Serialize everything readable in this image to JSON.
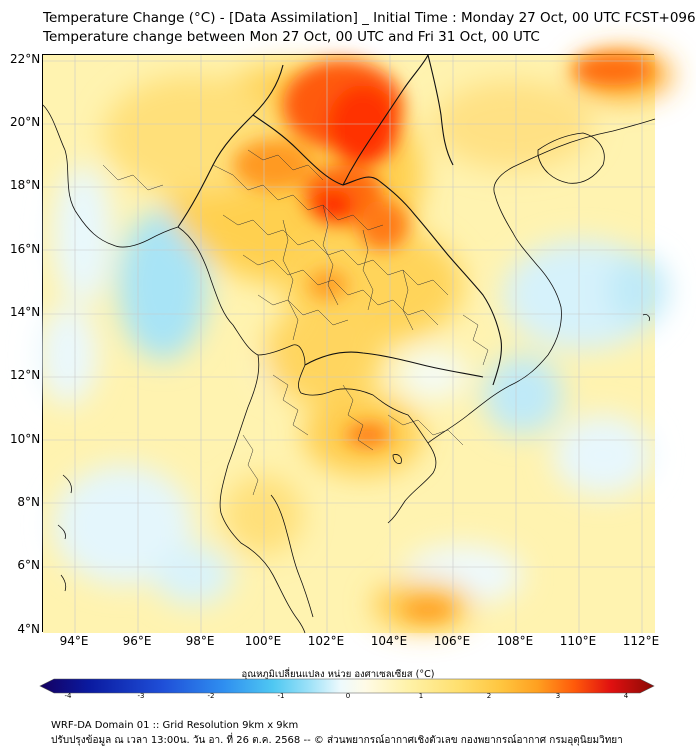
{
  "header": {
    "title_line1": "Temperature Change (°C) - [Data Assimilation] _ Initial Time : Monday 27 Oct, 00 UTC FCST+096",
    "title_line2": "Temperature change between Mon 27 Oct, 00 UTC and Fri 31 Oct, 00 UTC"
  },
  "map": {
    "lat_labels": [
      "22°N",
      "20°N",
      "18°N",
      "16°N",
      "14°N",
      "12°N",
      "10°N",
      "8°N",
      "6°N",
      "4°N"
    ],
    "lon_labels": [
      "94°E",
      "96°E",
      "98°E",
      "100°E",
      "102°E",
      "104°E",
      "106°E",
      "108°E",
      "110°E",
      "112°E"
    ],
    "extent": {
      "lon_min": 93.0,
      "lon_max": 112.5,
      "lat_min": 4.0,
      "lat_max": 22.2
    }
  },
  "colorbar": {
    "title": "อุณหภูมิเปลี่ยนแปลง หน่วย องศาเซลเซียส (°C)",
    "ticks": [
      "-4",
      "-3",
      "-2",
      "-1",
      "0",
      "1",
      "2",
      "3",
      "4"
    ],
    "min": -4,
    "max": 4,
    "colors": [
      "#140060",
      "#0a1aa0",
      "#1f4fd8",
      "#2f8ff0",
      "#4fc8f2",
      "#9fe2f8",
      "#e4f7fd",
      "#ffffff",
      "#fffadf",
      "#fff2a8",
      "#ffe070",
      "#ffc640",
      "#ffa020",
      "#ff7410",
      "#ff3a05",
      "#e01010",
      "#8a0a05"
    ]
  },
  "footer": {
    "line1": "WRF-DA Domain 01 :: Grid Resolution 9km x 9km",
    "line2": "ปรับปรุงข้อมูล ณ เวลา 13:00น. วัน อา. ที่ 26 ต.ค. 2568 -- © ส่วนพยากรณ์อากาศเชิงตัวเลข กองพยากรณ์อากาศ กรมอุตุนิยมวิทยา"
  }
}
